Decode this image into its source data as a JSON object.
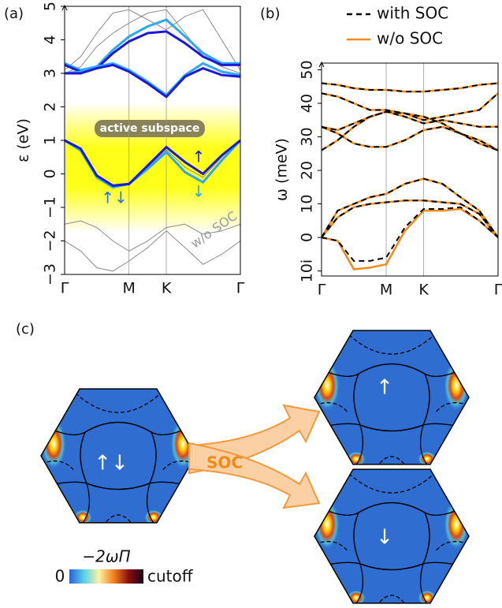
{
  "chart_data": [
    {
      "type": "line",
      "panel_label": "(a)",
      "ylabel": "ε (eV)",
      "x": [
        0,
        0.25,
        0.5,
        0.75,
        1,
        1.29,
        1.58,
        1.87,
        2.15,
        2.44,
        2.73
      ],
      "xlim": [
        0,
        2.73
      ],
      "xticks": [
        {
          "value": 0,
          "label": "Γ"
        },
        {
          "value": 1,
          "label": "M"
        },
        {
          "value": 1.58,
          "label": "K"
        },
        {
          "value": 2.73,
          "label": "Γ"
        }
      ],
      "ylim": [
        -3,
        5
      ],
      "yticks": [
        {
          "value": -3,
          "label": "−3"
        },
        {
          "value": -2,
          "label": "−2"
        },
        {
          "value": -1,
          "label": "−1"
        },
        0,
        1,
        2,
        3,
        4,
        5
      ],
      "grid": "x",
      "series": [
        {
          "color": "#8a8a8a",
          "values": [
            -1.5,
            -1.4,
            -1.6,
            -2.0,
            -2.3,
            -2.0,
            -1.6,
            -1.5,
            -1.8,
            -1.7,
            -1.5
          ]
        },
        {
          "color": "#8a8a8a",
          "values": [
            -2.0,
            -2.3,
            -2.8,
            -2.9,
            -2.6,
            -2.2,
            -1.7,
            -2.2,
            -2.7,
            -2.4,
            -2.0
          ]
        },
        {
          "color": "#8a8a8a",
          "values": [
            3.1,
            3.5,
            4.2,
            4.8,
            4.9,
            4.6,
            4.3,
            4.7,
            4.9,
            4.0,
            3.1
          ]
        },
        {
          "color": "#8a8a8a",
          "values": [
            3.0,
            3.2,
            3.8,
            4.2,
            4.5,
            4.8,
            4.9,
            4.2,
            3.5,
            3.2,
            3.0
          ]
        },
        {
          "color": "#8a8a8a",
          "values": [
            1.0,
            0.72,
            -0.08,
            -0.38,
            -0.3,
            0.2,
            0.72,
            0.2,
            -0.1,
            0.5,
            1.0
          ]
        },
        {
          "color": "#2ea8f0",
          "values": [
            3.3,
            3.1,
            3.2,
            3.7,
            4.1,
            4.4,
            4.6,
            4.1,
            3.6,
            3.3,
            3.3
          ]
        },
        {
          "color": "#1a1ad8",
          "values": [
            3.25,
            3.05,
            3.15,
            3.6,
            3.95,
            4.2,
            4.25,
            3.9,
            3.5,
            3.25,
            3.25
          ]
        },
        {
          "color": "#2ea8f0",
          "values": [
            3.0,
            3.05,
            3.2,
            3.3,
            3.1,
            2.75,
            2.35,
            2.95,
            3.3,
            3.05,
            2.95
          ]
        },
        {
          "color": "#1a1ad8",
          "values": [
            3.0,
            3.0,
            3.15,
            3.25,
            3.05,
            2.7,
            2.3,
            2.9,
            3.15,
            2.95,
            2.9
          ]
        },
        {
          "color": "#2ea8f0",
          "values": [
            1.0,
            0.7,
            -0.1,
            -0.4,
            -0.3,
            0.15,
            0.65,
            0.05,
            -0.25,
            0.4,
            1.0
          ]
        },
        {
          "color": "#1a1ad8",
          "values": [
            1.0,
            0.75,
            -0.05,
            -0.35,
            -0.3,
            0.25,
            0.8,
            0.35,
            0.0,
            0.55,
            1.0
          ]
        }
      ],
      "annotations": [
        "active subspace",
        "w/o SOC",
        "↑",
        "↓",
        "↑↓"
      ]
    },
    {
      "type": "line",
      "panel_label": "(b)",
      "ylabel": "ω (meV)",
      "x": [
        0,
        0.25,
        0.5,
        0.75,
        1,
        1.29,
        1.58,
        1.87,
        2.15,
        2.44,
        2.73
      ],
      "xlim": [
        0,
        2.73
      ],
      "xticks": [
        {
          "value": 0,
          "label": "Γ"
        },
        {
          "value": 1,
          "label": "M"
        },
        {
          "value": 1.58,
          "label": "K"
        },
        {
          "value": 2.73,
          "label": "Γ"
        }
      ],
      "ylim": [
        -11.5,
        52
      ],
      "yticks": [
        {
          "value": -10,
          "label": "10i"
        },
        0,
        10,
        20,
        30,
        40,
        50
      ],
      "grid": "x",
      "legend": "top",
      "series": [
        {
          "name": "w/o SOC",
          "color": "#f28a1a",
          "dash": false,
          "branches": [
            [
              0,
              -1,
              -9.5,
              -9,
              -8,
              2,
              8,
              8,
              8.5,
              5,
              0
            ],
            [
              0,
              6,
              9,
              10,
              10.5,
              11,
              11,
              10.5,
              10,
              7,
              0
            ],
            [
              0,
              8,
              10,
              12,
              13,
              16,
              17.5,
              16,
              12,
              8,
              0
            ],
            [
              33,
              31,
              28,
              27,
              27,
              29,
              32,
              33,
              31,
              29,
              26
            ],
            [
              33,
              32,
              34,
              36,
              37.5,
              36,
              34,
              35,
              34,
              33,
              33
            ],
            [
              26,
              29,
              33,
              36,
              37.5,
              37,
              36,
              34,
              31,
              28,
              26
            ],
            [
              43,
              42,
              40,
              38,
              38,
              37,
              35,
              36,
              37,
              38,
              43
            ],
            [
              46,
              45.5,
              44.5,
              44,
              44,
              43.5,
              43.5,
              44,
              44.5,
              45.5,
              46
            ]
          ]
        },
        {
          "name": "with SOC",
          "color": "#000000",
          "dash": true,
          "branches": [
            [
              0,
              -1,
              -7,
              -7,
              -6,
              3,
              8.5,
              8.5,
              9,
              5,
              0
            ],
            [
              0,
              6,
              9,
              10,
              10.5,
              11,
              11,
              10.5,
              10,
              7,
              0
            ],
            [
              0,
              8,
              10,
              12,
              13,
              16,
              17.5,
              16,
              12,
              8,
              0
            ],
            [
              33,
              31,
              28,
              27,
              27,
              29,
              32,
              33,
              31,
              29,
              26
            ],
            [
              33,
              32,
              34,
              36,
              37.5,
              36,
              34,
              35,
              34,
              33,
              33
            ],
            [
              26,
              29,
              33,
              36,
              37.5,
              37,
              36,
              34,
              31,
              28,
              26
            ],
            [
              43,
              42,
              40,
              38,
              38,
              37,
              35,
              36,
              37,
              38,
              43
            ],
            [
              46,
              45.5,
              44.5,
              44,
              44,
              43.5,
              43.5,
              44,
              44.5,
              45.5,
              46
            ]
          ]
        }
      ]
    }
  ],
  "panel_c": {
    "label": "(c)",
    "arrow_label": "SOC",
    "spin_labels": [
      "↑↓",
      "↑",
      "↓"
    ],
    "colorbar": {
      "title": "−2ωΠ",
      "min_label": "0",
      "max_label": "cutoff"
    }
  }
}
